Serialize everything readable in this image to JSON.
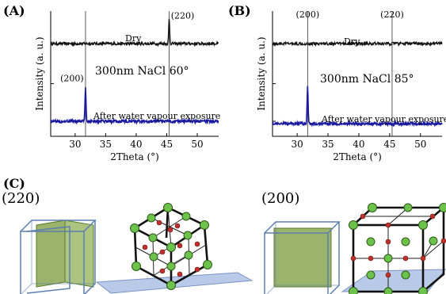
{
  "panels": {
    "a_label": "(A)",
    "b_label": "(B)",
    "c_label": "(C)"
  },
  "colors": {
    "dry": "#111111",
    "water": "#1a1aa0",
    "plane_green": "#7a9a3a",
    "atom_green": "#6cc24a",
    "atom_red": "#c0302a",
    "base_plane": "#9bb3e0",
    "cube_edge": "#5b7fb0"
  },
  "chart_data": [
    {
      "type": "line",
      "panel": "(A)",
      "xlabel": "2Theta (°)",
      "ylabel": "Intensity (a. u.)",
      "xlim": [
        26,
        53.5
      ],
      "xticks": [
        30,
        35,
        40,
        45,
        50
      ],
      "annotation": "300nm NaCl 60°",
      "reference_lines": [
        31.7,
        45.4
      ],
      "series": [
        {
          "name": "Dry",
          "color": "#111111",
          "baseline": 0.74,
          "noise": 0.012,
          "peaks": [
            {
              "x": 45.4,
              "height": 0.2,
              "label": "(220)"
            }
          ]
        },
        {
          "name": "After water vapour exposure",
          "color": "#1a1aa0",
          "baseline": 0.12,
          "noise": 0.012,
          "peaks": [
            {
              "x": 31.7,
              "height": 0.27,
              "label": "(200)"
            }
          ]
        }
      ]
    },
    {
      "type": "line",
      "panel": "(B)",
      "xlabel": "2Theta (°)",
      "ylabel": "Intensity (a. u.)",
      "xlim": [
        26,
        53.5
      ],
      "xticks": [
        30,
        35,
        40,
        45,
        50
      ],
      "annotation": "300nm NaCl 85°",
      "reference_lines": [
        31.7,
        45.4
      ],
      "series": [
        {
          "name": "Dry",
          "color": "#111111",
          "baseline": 0.74,
          "noise": 0.012,
          "peaks": [],
          "position_labels": [
            {
              "x": 31.7,
              "label": "(200)"
            },
            {
              "x": 45.4,
              "label": "(220)"
            }
          ]
        },
        {
          "name": "After water vapour exposure",
          "color": "#1a1aa0",
          "baseline": 0.1,
          "noise": 0.012,
          "peaks": [
            {
              "x": 31.7,
              "height": 0.3
            }
          ]
        }
      ]
    }
  ],
  "crystal": {
    "left_plane_label": "(220)",
    "right_plane_label": "(200)"
  }
}
